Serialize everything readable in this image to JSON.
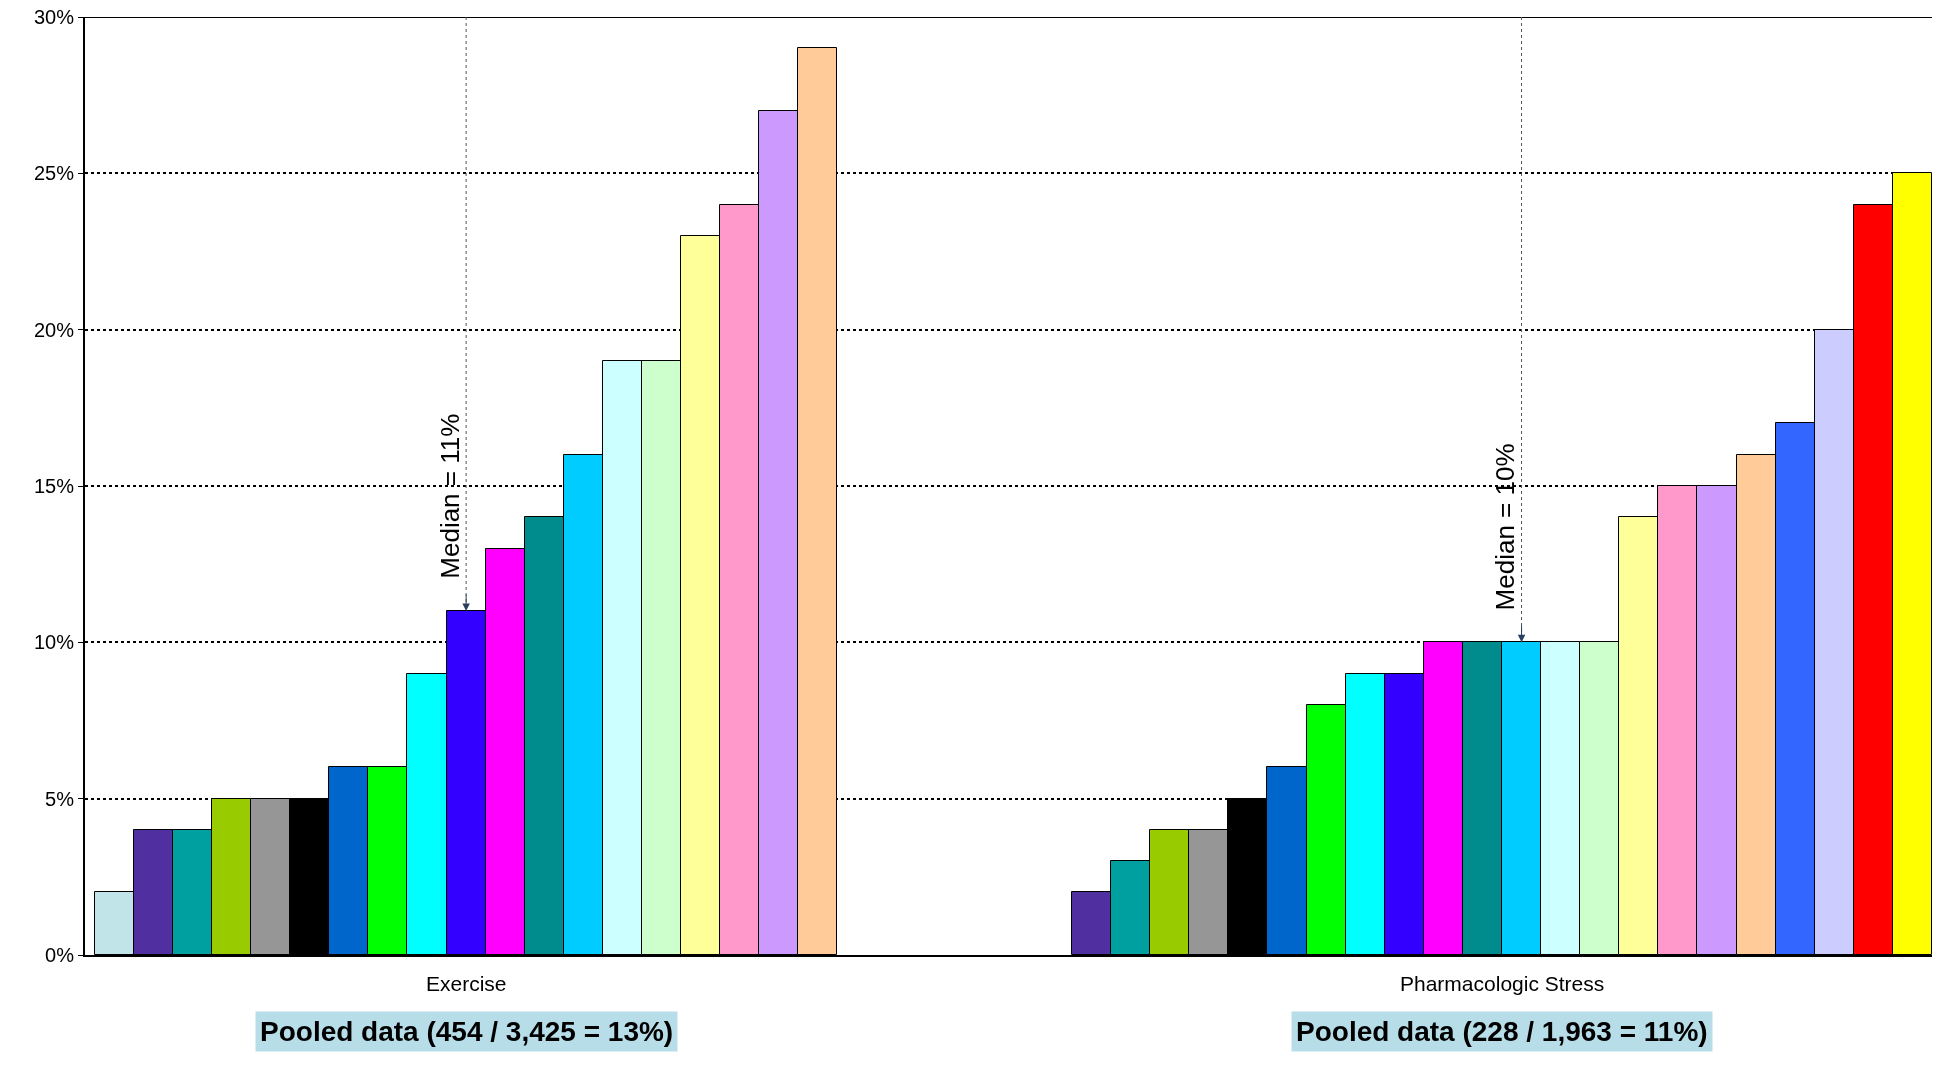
{
  "chart_data": {
    "type": "bar",
    "categories": [
      null,
      null,
      null,
      null,
      null,
      null,
      null,
      null,
      null,
      null,
      null,
      null,
      null,
      null,
      null,
      null,
      null,
      null,
      null,
      null,
      null,
      null,
      null,
      null,
      null,
      null,
      null,
      null,
      null,
      null,
      null,
      null,
      null,
      null,
      null,
      null,
      null,
      null,
      null,
      null,
      null,
      null,
      null,
      null,
      null,
      null,
      null
    ],
    "values": [
      2,
      4,
      4,
      5,
      5,
      5,
      6,
      6,
      9,
      11,
      13,
      14,
      16,
      19,
      19,
      23,
      24,
      27,
      29,
      null,
      null,
      null,
      null,
      null,
      null,
      2,
      3,
      4,
      4,
      5,
      6,
      8,
      9,
      9,
      10,
      10,
      10,
      10,
      10,
      14,
      15,
      15,
      16,
      17,
      20,
      24,
      25
    ],
    "colors": [
      "#c0e4e8",
      "#5030a0",
      "#00a0a0",
      "#99cc00",
      "#969696",
      "#000000",
      "#0066cc",
      "#00ff00",
      "#00ffff",
      "#3300ff",
      "#ff00ff",
      "#008c8c",
      "#00ccff",
      "#ccffff",
      "#ccffcc",
      "#ffff99",
      "#ff99cc",
      "#cc99ff",
      "#ffcc99",
      null,
      null,
      null,
      null,
      null,
      null,
      "#5030a0",
      "#00a0a0",
      "#99cc00",
      "#969696",
      "#000000",
      "#0066cc",
      "#00ff00",
      "#00ffff",
      "#3300ff",
      "#ff00ff",
      "#008c8c",
      "#00ccff",
      "#ccffff",
      "#ccffcc",
      "#ffff99",
      "#ff99cc",
      "#cc99ff",
      "#ffcc99",
      "#3366ff",
      "#ccccff",
      "#ff0000",
      "#ffff00"
    ],
    "ylim": [
      0,
      30
    ],
    "yticks": [
      {
        "value": 0,
        "label": "0%"
      },
      {
        "value": 5,
        "label": "5%"
      },
      {
        "value": 10,
        "label": "10%"
      },
      {
        "value": 15,
        "label": "15%"
      },
      {
        "value": 20,
        "label": "20%"
      },
      {
        "value": 25,
        "label": "25%"
      },
      {
        "value": 30,
        "label": "30%"
      }
    ],
    "grid": "y",
    "annotations": [
      "Exercise",
      "Pharmacologic Stress",
      "Pooled data (454 / 3,425 = 13%)",
      "Pooled data (228 / 1,963 = 11%)",
      {
        "text": "Median = 11%",
        "y": 11
      },
      {
        "text": "Median = 10%",
        "y": 10
      }
    ]
  }
}
